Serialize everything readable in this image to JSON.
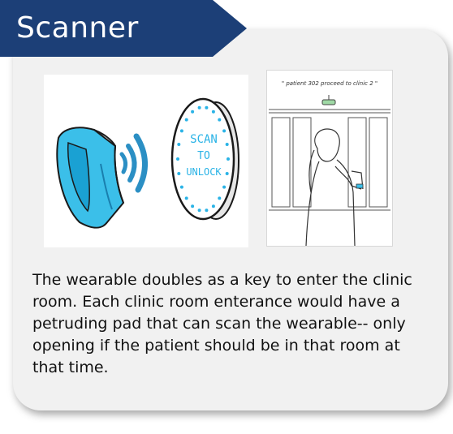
{
  "header": {
    "title": "Scanner"
  },
  "illustration_scan": {
    "pad_text_line1": "SCAN",
    "pad_text_line2": "TO",
    "pad_text_line3": "UNLOCK",
    "colors": {
      "band": "#3bbfe9",
      "band_dark": "#1aa1d3",
      "waves": "#2b8fc4",
      "dots": "#2ab3e6"
    }
  },
  "illustration_clinic": {
    "caption": "\" patient 302 proceed to clinic 2 \""
  },
  "description": "The wearable doubles as a key to enter the clinic room. Each clinic room enterance would have a petruding pad that can scan the wearable-- only opening if the patient should be in that room at that time.",
  "colors": {
    "banner": "#1c3f77",
    "card": "#f1f1f1"
  }
}
